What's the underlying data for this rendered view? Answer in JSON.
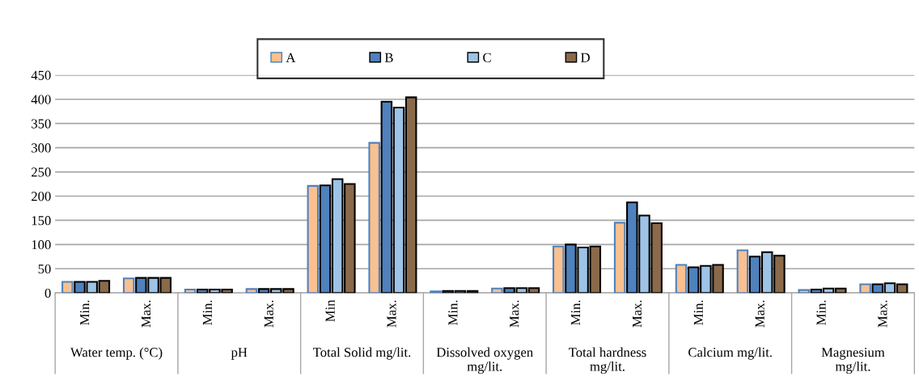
{
  "chart_data": {
    "type": "bar",
    "categories": [
      "Min.",
      "Max.",
      "Min.",
      "Max.",
      "Min",
      "Max.",
      "Min.",
      "Max.",
      "Min.",
      "Max.",
      "Min.",
      "Max.",
      "Min.",
      "Max."
    ],
    "annotations": [
      "Water temp. (°C)",
      "pH",
      "Total Solid mg/lit.",
      "Dissolved oxygen\nmg/lit.",
      "Total hardness\nmg/lit.",
      "Calcium mg/lit.",
      "Magnesium\nmg/lit."
    ],
    "series": [
      {
        "name": "A",
        "color": "#fac090",
        "values": [
          23,
          30,
          7,
          8,
          221,
          310,
          3,
          9,
          96,
          145,
          58,
          88,
          6,
          18
        ]
      },
      {
        "name": "B",
        "color": "#4f81bd",
        "values": [
          23,
          31,
          7,
          8,
          222,
          395,
          4,
          10,
          100,
          187,
          53,
          75,
          7,
          18
        ]
      },
      {
        "name": "C",
        "color": "#9dc3e6",
        "values": [
          23,
          31,
          7,
          8,
          235,
          383,
          4,
          10,
          94,
          160,
          56,
          84,
          9,
          20
        ]
      },
      {
        "name": "D",
        "color": "#8a6a4a",
        "values": [
          25,
          31,
          7,
          8,
          225,
          404,
          4,
          10,
          96,
          144,
          58,
          77,
          9,
          18
        ]
      }
    ],
    "ylim": [
      0,
      450
    ],
    "yticks": [
      0,
      50,
      100,
      150,
      200,
      250,
      300,
      350,
      400,
      450
    ],
    "grid": "y",
    "legend": "top"
  }
}
